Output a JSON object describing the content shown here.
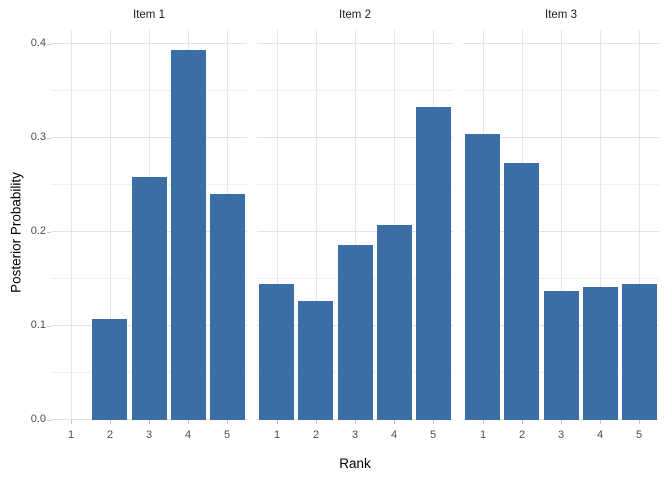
{
  "chart_data": {
    "type": "bar",
    "title": "",
    "xlabel": "Rank",
    "ylabel": "Posterior Probability",
    "x_categories": [
      "1",
      "2",
      "3",
      "4",
      "5"
    ],
    "y_ticks": [
      0.0,
      0.1,
      0.2,
      0.3,
      0.4
    ],
    "y_minor_ticks": [
      0.05,
      0.15,
      0.25,
      0.35
    ],
    "ylim": [
      0,
      0.415
    ],
    "grid": "major+minor, horizontal and vertical-at-category, light grey on white",
    "legend": "none",
    "bar_color": "#3b6da6",
    "facets": [
      {
        "label": "Item 1",
        "values": [
          0.0,
          0.107,
          0.259,
          0.394,
          0.24
        ]
      },
      {
        "label": "Item 2",
        "values": [
          0.145,
          0.127,
          0.186,
          0.208,
          0.333
        ]
      },
      {
        "label": "Item 3",
        "values": [
          0.304,
          0.273,
          0.137,
          0.141,
          0.145
        ]
      }
    ]
  }
}
